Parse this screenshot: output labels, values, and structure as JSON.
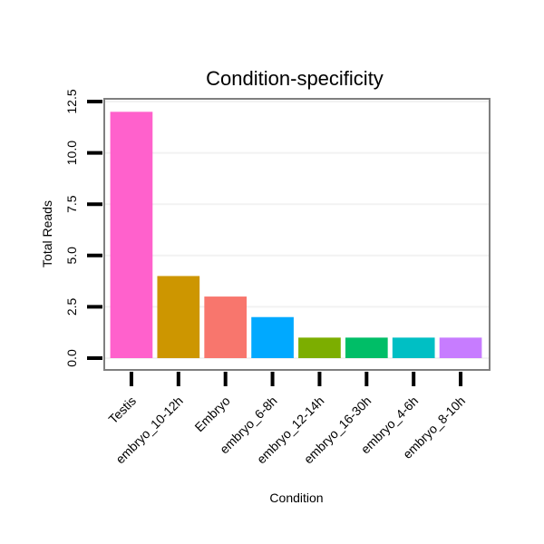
{
  "chart_data": {
    "type": "bar",
    "title": "Condition-specificity",
    "xlabel": "Condition",
    "ylabel": "Total Reads",
    "ylim": [
      0,
      12.5
    ],
    "yticks": [
      "0.0",
      "2.5",
      "5.0",
      "7.5",
      "10.0",
      "12.5"
    ],
    "categories": [
      "Testis",
      "embryo_10-12h",
      "Embryo",
      "embryo_6-8h",
      "embryo_12-14h",
      "embryo_16-30h",
      "embryo_4-6h",
      "embryo_8-10h"
    ],
    "values": [
      12,
      4,
      3,
      2,
      1,
      1,
      1,
      1
    ],
    "colors": [
      "#FF61CC",
      "#CD9600",
      "#F8766D",
      "#00A9FF",
      "#7CAE00",
      "#00BE67",
      "#00BFC4",
      "#C77CFF"
    ],
    "grid": true,
    "legend": "none"
  }
}
